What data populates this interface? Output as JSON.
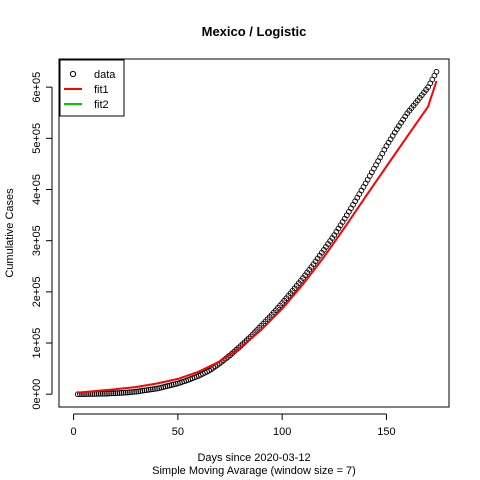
{
  "chart_data": {
    "type": "scatter",
    "title": "Mexico / Logistic",
    "xlabel": "Days since 2020-03-12",
    "xsublabel": "Simple Moving Avarage (window size = 7)",
    "ylabel": "Cumulative Cases",
    "xlim": [
      -7,
      180
    ],
    "ylim": [
      -25000,
      655000
    ],
    "x_ticks": [
      0,
      50,
      100,
      150
    ],
    "x_tick_labels": [
      "0",
      "50",
      "100",
      "150"
    ],
    "y_ticks": [
      0,
      100000,
      200000,
      300000,
      400000,
      500000,
      600000
    ],
    "y_tick_labels": [
      "0e+00",
      "1e+05",
      "2e+05",
      "3e+05",
      "4e+05",
      "5e+05",
      "6e+05"
    ],
    "legend": {
      "position": "top-left",
      "entries": [
        {
          "label": "data",
          "marker": "circle",
          "color": "#000000"
        },
        {
          "label": "fit1",
          "marker": "line",
          "color": "#ff0000"
        },
        {
          "label": "fit2",
          "marker": "line",
          "color": "#00cd00"
        }
      ]
    },
    "series": [
      {
        "name": "data",
        "kind": "points",
        "color": "#000000",
        "x": [
          2,
          5,
          10,
          15,
          20,
          25,
          30,
          35,
          40,
          45,
          50,
          55,
          60,
          65,
          70,
          75,
          80,
          85,
          90,
          95,
          100,
          105,
          110,
          115,
          120,
          125,
          130,
          135,
          140,
          145,
          150,
          155,
          160,
          165,
          170,
          174
        ],
        "y": [
          0,
          200,
          500,
          1000,
          2000,
          3000,
          5000,
          8000,
          11000,
          16000,
          21000,
          28000,
          36000,
          46000,
          60000,
          76000,
          94000,
          113000,
          134000,
          155000,
          178000,
          202000,
          227000,
          254000,
          282000,
          311000,
          343000,
          377000,
          412000,
          448000,
          485000,
          518000,
          549000,
          574000,
          600000,
          630000
        ]
      },
      {
        "name": "fit1",
        "kind": "line",
        "color": "#ff0000",
        "x": [
          2,
          10,
          20,
          30,
          40,
          50,
          60,
          70,
          80,
          90,
          100,
          110,
          120,
          130,
          140,
          150,
          160,
          170,
          174
        ],
        "y": [
          3000,
          6000,
          9500,
          14000,
          21000,
          30000,
          44000,
          64000,
          91000,
          126000,
          167000,
          215000,
          268000,
          326000,
          386000,
          445000,
          504000,
          562000,
          612000
        ]
      },
      {
        "name": "fit2",
        "kind": "line",
        "color": "#00cd00",
        "x": [],
        "y": []
      }
    ]
  }
}
